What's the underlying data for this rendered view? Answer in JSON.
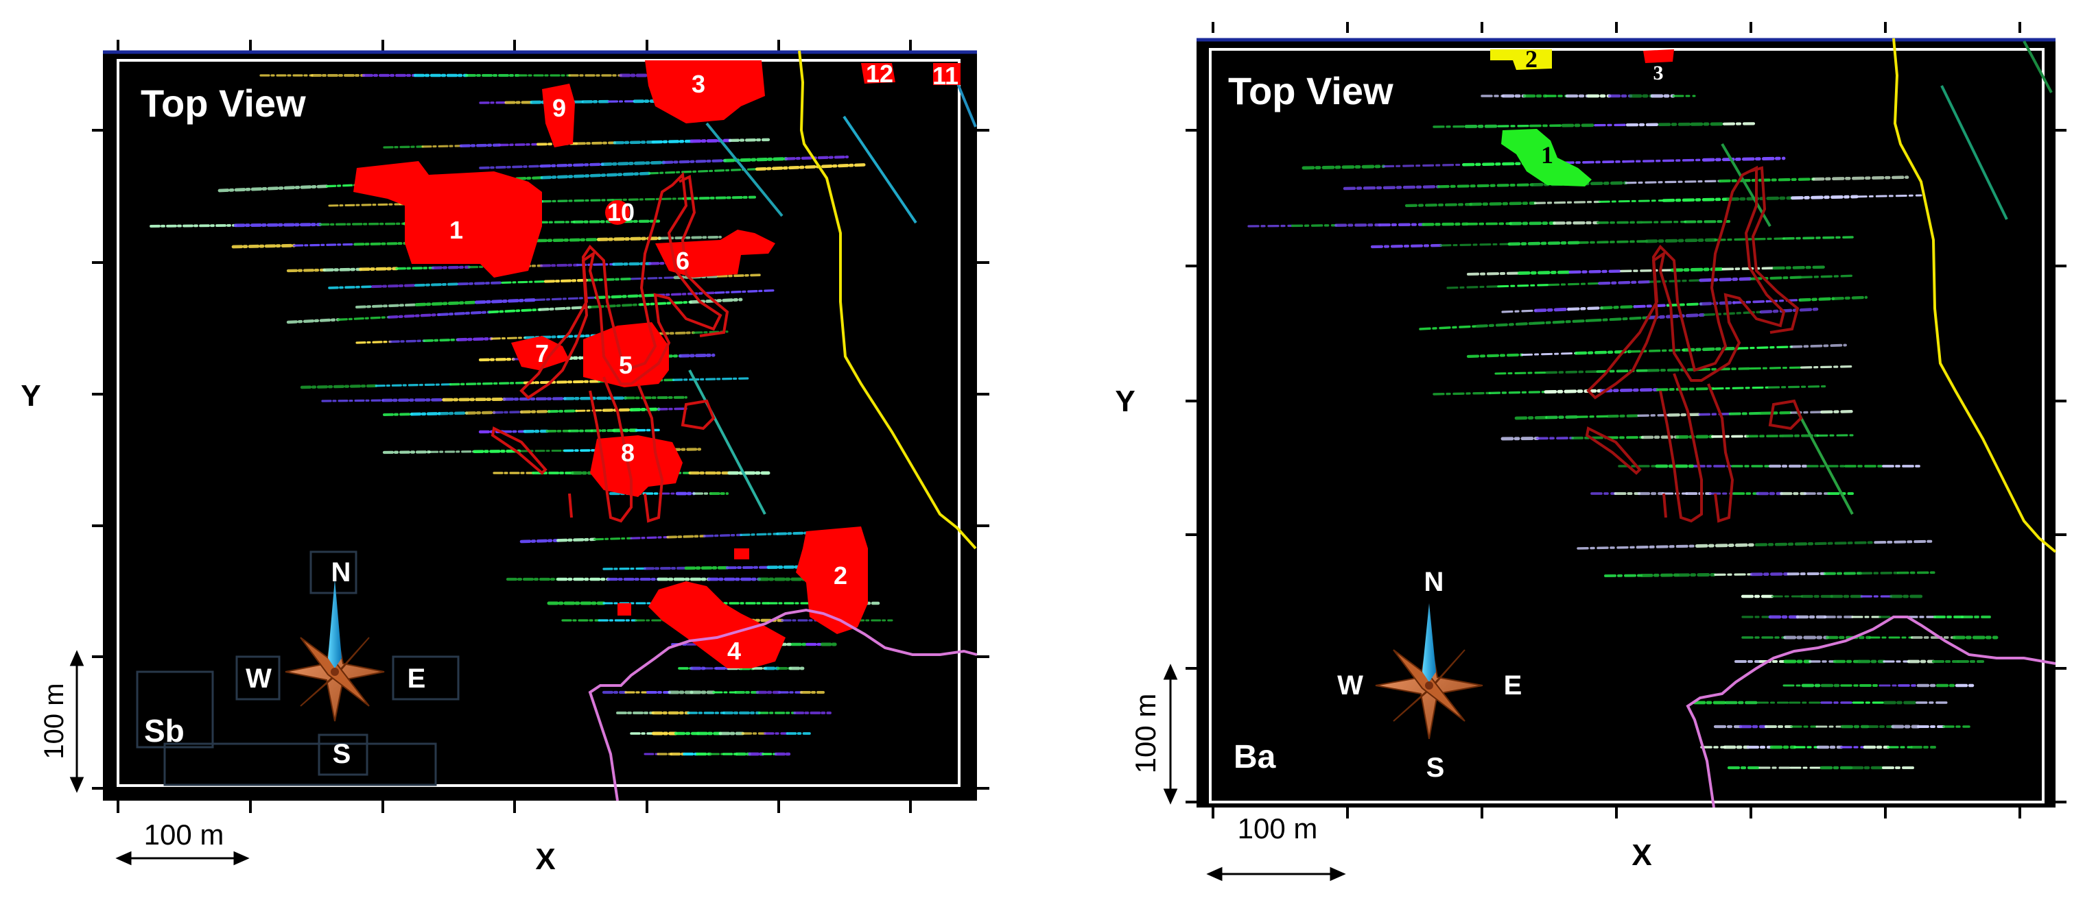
{
  "panels": [
    {
      "view_title": "Top View",
      "element": "Sb",
      "axis_x": "X",
      "axis_y": "Y",
      "scale_x": "100 m",
      "scale_y": "100 m",
      "compass": {
        "n": "N",
        "s": "S",
        "e": "E",
        "w": "W"
      },
      "anomaly_color": "#ff0000",
      "zones": [
        "1",
        "2",
        "3",
        "4",
        "5",
        "6",
        "7",
        "8",
        "9",
        "10",
        "11",
        "12"
      ]
    },
    {
      "view_title": "Top View",
      "element": "Ba",
      "axis_x": "X",
      "axis_y": "Y",
      "scale_x": "100 m",
      "scale_y": "100 m",
      "compass": {
        "n": "N",
        "s": "S",
        "e": "E",
        "w": "W"
      },
      "zones": [
        {
          "label": "1",
          "color": "#22ee22"
        },
        {
          "label": "2",
          "color": "#f2f200"
        },
        {
          "label": "3",
          "color": "#ff0000"
        }
      ]
    }
  ],
  "colors": {
    "background": "#000000",
    "boundary_yellow": "#f2e600",
    "boundary_pink": "#d878d8",
    "outline_red": "#d01010",
    "frame": "#ffffff"
  }
}
